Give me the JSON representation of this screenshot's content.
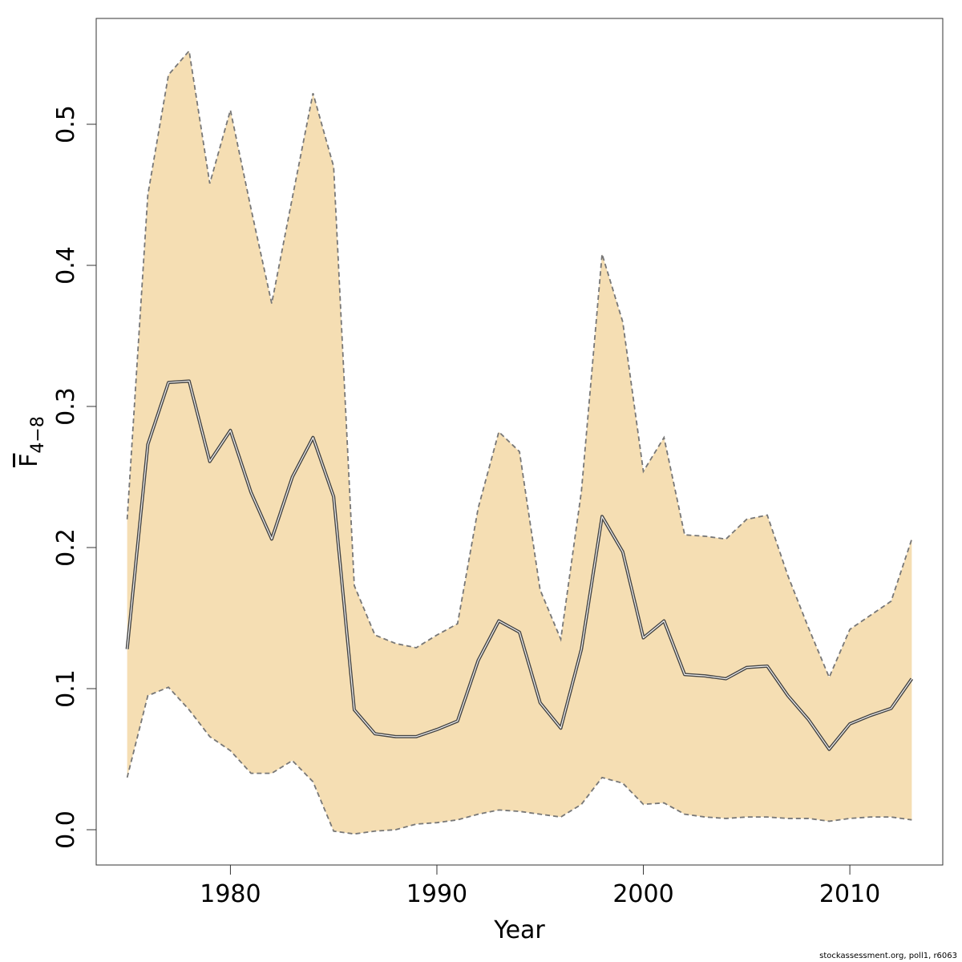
{
  "chart_data": {
    "type": "line",
    "xlabel": "Year",
    "ylabel_main": "F",
    "ylabel_sub": "4−8",
    "xlim": [
      1973.5,
      2014.5
    ],
    "ylim": [
      -0.025,
      0.575
    ],
    "x_ticks": [
      1980,
      1990,
      2000,
      2010
    ],
    "y_ticks": [
      0.0,
      0.1,
      0.2,
      0.3,
      0.4,
      0.5
    ],
    "y_tick_labels": [
      "0.0",
      "0.1",
      "0.2",
      "0.3",
      "0.4",
      "0.5"
    ],
    "band_color": "#f5deb3",
    "line_color": "#444444",
    "bound_color": "#777777",
    "years": [
      1975,
      1976,
      1977,
      1978,
      1979,
      1980,
      1981,
      1982,
      1983,
      1984,
      1985,
      1986,
      1987,
      1988,
      1989,
      1990,
      1991,
      1992,
      1993,
      1994,
      1995,
      1996,
      1997,
      1998,
      1999,
      2000,
      2001,
      2002,
      2003,
      2004,
      2005,
      2006,
      2007,
      2008,
      2009,
      2010,
      2011,
      2012,
      2013
    ],
    "series": [
      {
        "role": "estimate",
        "values": [
          0.128,
          0.273,
          0.317,
          0.318,
          0.261,
          0.283,
          0.239,
          0.206,
          0.25,
          0.278,
          0.236,
          0.085,
          0.068,
          0.066,
          0.066,
          0.071,
          0.077,
          0.12,
          0.148,
          0.14,
          0.09,
          0.072,
          0.128,
          0.222,
          0.197,
          0.136,
          0.148,
          0.11,
          0.109,
          0.107,
          0.115,
          0.116,
          0.095,
          0.078,
          0.057,
          0.075,
          0.081,
          0.086,
          0.107
        ]
      },
      {
        "role": "upper",
        "values": [
          0.22,
          0.45,
          0.535,
          0.552,
          0.458,
          0.51,
          0.44,
          0.373,
          0.448,
          0.522,
          0.47,
          0.173,
          0.138,
          0.132,
          0.129,
          0.138,
          0.146,
          0.228,
          0.282,
          0.268,
          0.17,
          0.135,
          0.24,
          0.408,
          0.36,
          0.254,
          0.278,
          0.209,
          0.208,
          0.206,
          0.22,
          0.223,
          0.18,
          0.143,
          0.108,
          0.142,
          0.152,
          0.162,
          0.206
        ]
      },
      {
        "role": "lower",
        "values": [
          0.037,
          0.095,
          0.101,
          0.085,
          0.066,
          0.056,
          0.04,
          0.04,
          0.049,
          0.034,
          -0.001,
          -0.003,
          -0.001,
          0.0,
          0.004,
          0.005,
          0.007,
          0.011,
          0.014,
          0.013,
          0.011,
          0.009,
          0.018,
          0.037,
          0.033,
          0.018,
          0.019,
          0.011,
          0.009,
          0.008,
          0.009,
          0.009,
          0.008,
          0.008,
          0.006,
          0.008,
          0.009,
          0.009,
          0.007
        ]
      }
    ]
  },
  "credit": "stockassessment.org, poll1, r6063"
}
